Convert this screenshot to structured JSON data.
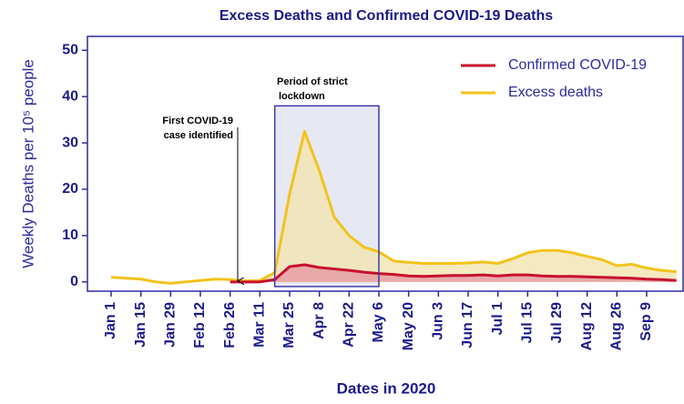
{
  "chart_data": {
    "type": "line",
    "title": "Excess Deaths and Confirmed COVID-19 Deaths",
    "xlabel": "Dates in 2020",
    "ylabel": "Weekly Deaths per 10⁵ people",
    "categories": [
      "Jan 1",
      null,
      "Jan 15",
      null,
      "Jan 29",
      null,
      "Feb 12",
      null,
      "Feb 26",
      null,
      "Mar 11",
      null,
      "Mar 25",
      null,
      "Apr 8",
      null,
      "Apr 22",
      null,
      "May 6",
      null,
      "May 20",
      null,
      "Jun 3",
      null,
      "Jun 17",
      null,
      "Jul 1",
      null,
      "Jul 15",
      null,
      "Jul 29",
      null,
      "Aug 12",
      null,
      "Aug 26",
      null,
      "Sep 9",
      null,
      null
    ],
    "series": [
      {
        "name": "Confirmed COVID-19",
        "color": "#c8102e",
        "fill": "#e49aa2",
        "values": [
          null,
          null,
          null,
          null,
          null,
          null,
          null,
          null,
          0,
          0,
          0,
          0.5,
          3.3,
          3.7,
          3.1,
          2.8,
          2.5,
          2.1,
          1.8,
          1.6,
          1.3,
          1.2,
          1.3,
          1.4,
          1.4,
          1.5,
          1.3,
          1.5,
          1.5,
          1.3,
          1.2,
          1.2,
          1.1,
          1.0,
          0.9,
          0.8,
          0.6,
          0.5,
          0.3
        ]
      },
      {
        "name": "Excess deaths",
        "color": "#f2c31a",
        "fill": "#f3e3b0",
        "values": [
          1.0,
          0.8,
          0.6,
          0.0,
          -0.3,
          0.0,
          0.3,
          0.6,
          0.5,
          0.2,
          0.3,
          2.0,
          19,
          32.5,
          24,
          14,
          10,
          7.5,
          6.5,
          4.5,
          4.2,
          4.0,
          4.0,
          4.0,
          4.1,
          4.3,
          4.0,
          5.0,
          6.3,
          6.8,
          6.8,
          6.3,
          5.5,
          4.8,
          3.5,
          3.8,
          3.0,
          2.5,
          2.2
        ]
      }
    ],
    "ylim": [
      -2,
      53
    ],
    "yticks": [
      0,
      10,
      20,
      30,
      40,
      50
    ],
    "legend": "upper right",
    "annotations": [
      "First COVID-19",
      "case identified",
      "Period of strict",
      "lockdown"
    ]
  }
}
